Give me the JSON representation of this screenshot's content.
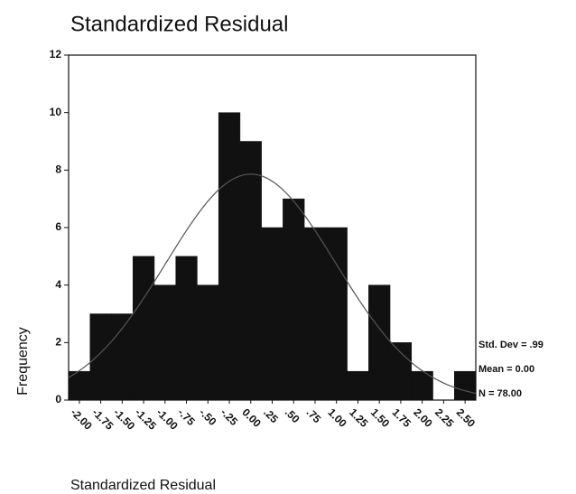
{
  "chart_data": {
    "type": "histogram",
    "title": "Standardized Residual",
    "x_label": "Standardized Residual",
    "y_label": "Frequency",
    "bins": [
      -2.125,
      -1.875,
      -1.625,
      -1.375,
      -1.125,
      -0.875,
      -0.625,
      -0.375,
      -0.125,
      0.125,
      0.375,
      0.625,
      0.875,
      1.125,
      1.375,
      1.625,
      1.875,
      2.125,
      2.375,
      2.625
    ],
    "values": [
      1,
      3,
      3,
      5,
      4,
      5,
      4,
      10,
      9,
      6,
      7,
      6,
      6,
      1,
      4,
      2,
      1,
      0,
      1
    ],
    "color": "#111111",
    "xlim": [
      -2.125,
      2.625
    ],
    "xticks": [
      {
        "value": -2,
        "label": "-2.00"
      },
      {
        "value": -1.75,
        "label": "-1.75"
      },
      {
        "value": -1.5,
        "label": "-1.50"
      },
      {
        "value": -1.25,
        "label": "-1.25"
      },
      {
        "value": -1,
        "label": "-1.00"
      },
      {
        "value": -0.75,
        "label": "-.75"
      },
      {
        "value": -0.5,
        "label": "-.50"
      },
      {
        "value": -0.25,
        "label": "-.25"
      },
      {
        "value": 0,
        "label": "0.00"
      },
      {
        "value": 0.25,
        "label": ".25"
      },
      {
        "value": 0.5,
        "label": ".50"
      },
      {
        "value": 0.75,
        "label": ".75"
      },
      {
        "value": 1,
        "label": "1.00"
      },
      {
        "value": 1.25,
        "label": "1.25"
      },
      {
        "value": 1.5,
        "label": "1.50"
      },
      {
        "value": 1.75,
        "label": "1.75"
      },
      {
        "value": 2,
        "label": "2.00"
      },
      {
        "value": 2.25,
        "label": "2.25"
      },
      {
        "value": 2.5,
        "label": "2.50"
      }
    ],
    "ylim": [
      0,
      12
    ],
    "yticks": [
      0,
      2,
      4,
      6,
      8,
      10,
      12
    ],
    "normal_curve": {
      "mean": 0,
      "std_dev": 0.99,
      "n": 78
    },
    "stats": [
      "Std. Dev = .99",
      "Mean = 0.00",
      "N = 78.00"
    ]
  }
}
